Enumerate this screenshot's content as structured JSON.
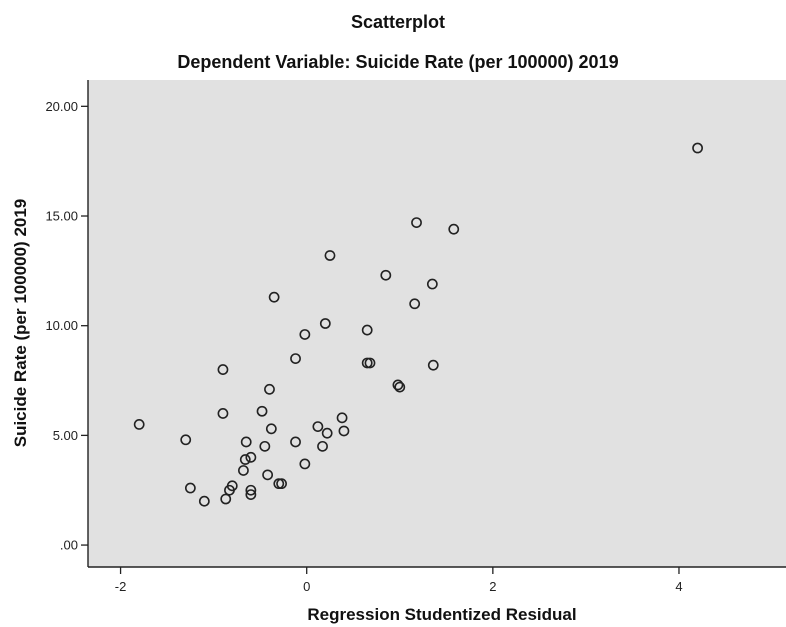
{
  "chart_data": {
    "type": "scatter",
    "title": "Scatterplot",
    "subtitle": "Dependent Variable: Suicide Rate (per 100000) 2019",
    "xlabel": "Regression Studentized Residual",
    "ylabel": "Suicide Rate (per 100000) 2019",
    "xlim": [
      -2.35,
      5.15
    ],
    "ylim": [
      -1.0,
      21.2
    ],
    "xticks": [
      -2,
      0,
      2,
      4
    ],
    "xtick_labels": [
      "-2",
      "0",
      "2",
      "4"
    ],
    "yticks": [
      0,
      5,
      10,
      15,
      20
    ],
    "ytick_labels": [
      ".00",
      "5.00",
      "10.00",
      "15.00",
      "20.00"
    ],
    "grid": false,
    "colors": {
      "plot_background": "#e1e1e1",
      "marker": "#222222"
    },
    "points": [
      [
        4.2,
        18.1
      ],
      [
        1.18,
        14.7
      ],
      [
        1.58,
        14.4
      ],
      [
        0.25,
        13.2
      ],
      [
        0.85,
        12.3
      ],
      [
        1.35,
        11.9
      ],
      [
        -0.35,
        11.3
      ],
      [
        1.16,
        11.0
      ],
      [
        0.2,
        10.1
      ],
      [
        0.65,
        9.8
      ],
      [
        -0.02,
        9.6
      ],
      [
        -0.12,
        8.5
      ],
      [
        0.65,
        8.3
      ],
      [
        0.68,
        8.3
      ],
      [
        -0.9,
        8.0
      ],
      [
        1.36,
        8.2
      ],
      [
        0.98,
        7.3
      ],
      [
        1.0,
        7.2
      ],
      [
        -0.4,
        7.1
      ],
      [
        -0.48,
        6.1
      ],
      [
        -0.9,
        6.0
      ],
      [
        0.38,
        5.8
      ],
      [
        -1.8,
        5.5
      ],
      [
        0.12,
        5.4
      ],
      [
        -0.38,
        5.3
      ],
      [
        0.4,
        5.2
      ],
      [
        0.22,
        5.1
      ],
      [
        -1.3,
        4.8
      ],
      [
        -0.65,
        4.7
      ],
      [
        -0.12,
        4.7
      ],
      [
        -0.45,
        4.5
      ],
      [
        0.17,
        4.5
      ],
      [
        -0.6,
        4.0
      ],
      [
        -0.66,
        3.9
      ],
      [
        -0.02,
        3.7
      ],
      [
        -0.68,
        3.4
      ],
      [
        -0.42,
        3.2
      ],
      [
        -0.3,
        2.8
      ],
      [
        -0.27,
        2.8
      ],
      [
        -0.8,
        2.7
      ],
      [
        -1.25,
        2.6
      ],
      [
        -0.83,
        2.5
      ],
      [
        -0.6,
        2.5
      ],
      [
        -0.6,
        2.3
      ],
      [
        -0.87,
        2.1
      ],
      [
        -1.1,
        2.0
      ]
    ]
  }
}
